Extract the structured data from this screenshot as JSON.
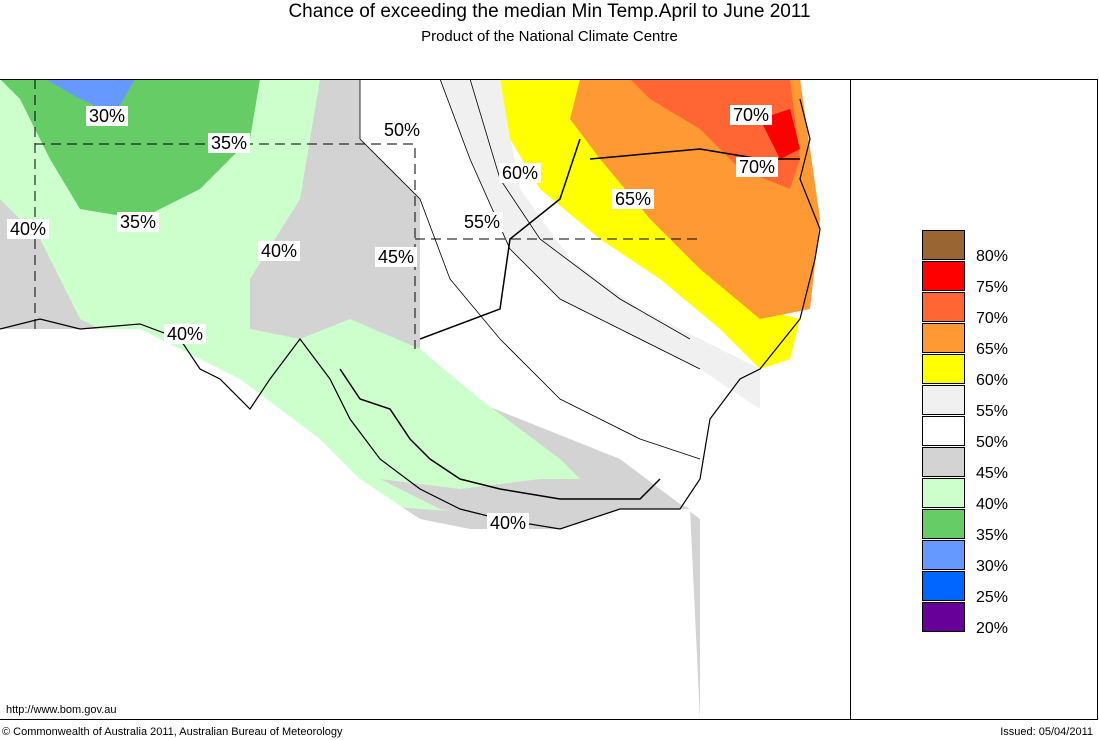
{
  "header": {
    "title": "Chance of exceeding the median Min Temp.April to June 2011",
    "subtitle": "Product of the National Climate Centre"
  },
  "contour_labels": [
    "30%",
    "35%",
    "50%",
    "40%",
    "35%",
    "60%",
    "55%",
    "40%",
    "45%",
    "65%",
    "70%",
    "70%",
    "40%",
    "40%"
  ],
  "legend": {
    "items": [
      {
        "label": "80%",
        "color": "#996633"
      },
      {
        "label": "75%",
        "color": "#ff0000"
      },
      {
        "label": "70%",
        "color": "#ff6633"
      },
      {
        "label": "65%",
        "color": "#ff9933"
      },
      {
        "label": "60%",
        "color": "#ffff00"
      },
      {
        "label": "55%",
        "color": "#f0f0f0"
      },
      {
        "label": "50%",
        "color": "#ffffff"
      },
      {
        "label": "45%",
        "color": "#d3d3d3"
      },
      {
        "label": "40%",
        "color": "#ccffcc"
      },
      {
        "label": "35%",
        "color": "#66cc66"
      },
      {
        "label": "30%",
        "color": "#6699ff"
      },
      {
        "label": "25%",
        "color": "#0066ff"
      },
      {
        "label": "20%",
        "color": "#660099"
      }
    ],
    "top_color": "#996633"
  },
  "footer": {
    "url": "http://www.bom.gov.au",
    "copyright": "© Commonwealth of Australia 2011, Australian Bureau of Meteorology",
    "issued": "Issued: 05/04/2011"
  }
}
